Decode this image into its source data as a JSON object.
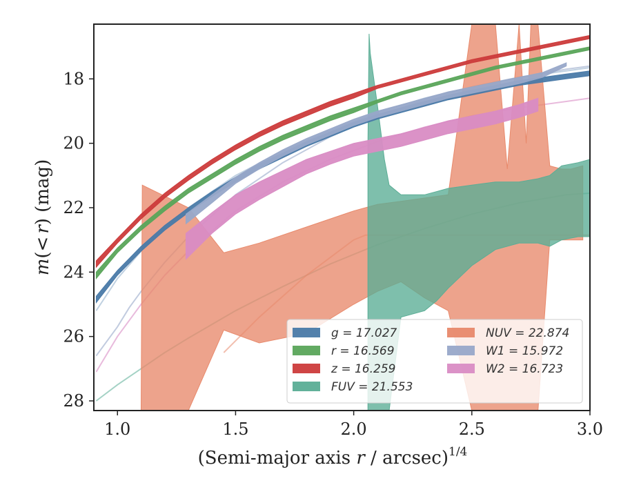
{
  "chart_data": {
    "type": "line",
    "xlabel": "(Semi-major axis r / arcsec)^1/4",
    "xlabel_parts": {
      "pre": "(Semi-major axis ",
      "var": "r",
      "post": " / arcsec)",
      "sup": "1/4"
    },
    "ylabel": "m(< r) (mag)",
    "ylabel_parts": {
      "m": "m",
      "open": "(",
      "lt": "<",
      "r": "r",
      "close": ")",
      "unit": " (mag)"
    },
    "xlim": [
      0.9,
      3.0
    ],
    "ylim": [
      28.3,
      16.3
    ],
    "y_inverted": true,
    "xticks": [
      1.0,
      1.5,
      2.0,
      2.5,
      3.0
    ],
    "xtick_labels": [
      "1.0",
      "1.5",
      "2.0",
      "2.5",
      "3.0"
    ],
    "yticks": [
      18,
      20,
      22,
      24,
      26,
      28
    ],
    "ytick_labels": [
      "18",
      "20",
      "22",
      "24",
      "26",
      "28"
    ],
    "grid": false,
    "legend_position": "lower-right",
    "series": [
      {
        "key": "g",
        "label": "g = 17.027",
        "color": "#4a7aa8",
        "kind": "band",
        "x": [
          0.91,
          1.0,
          1.1,
          1.2,
          1.3,
          1.4,
          1.5,
          1.6,
          1.7,
          1.8,
          1.9,
          2.0,
          2.1,
          2.2,
          2.3,
          2.4,
          2.5,
          2.6,
          2.7,
          2.8,
          2.9,
          3.0
        ],
        "y_upper": [
          24.75,
          23.95,
          23.2,
          22.55,
          22.0,
          21.5,
          21.05,
          20.65,
          20.3,
          19.95,
          19.65,
          19.35,
          19.1,
          18.9,
          18.7,
          18.5,
          18.35,
          18.2,
          18.05,
          17.95,
          17.85,
          17.75
        ],
        "y_lower": [
          24.95,
          24.1,
          23.35,
          22.7,
          22.15,
          21.65,
          21.2,
          20.8,
          20.45,
          20.1,
          19.8,
          19.5,
          19.25,
          19.05,
          18.85,
          18.65,
          18.5,
          18.35,
          18.2,
          18.1,
          18.0,
          17.9
        ]
      },
      {
        "key": "r",
        "label": "r = 16.569",
        "color": "#5aa55a",
        "kind": "band",
        "x": [
          0.91,
          1.0,
          1.1,
          1.2,
          1.3,
          1.4,
          1.5,
          1.6,
          1.7,
          1.8,
          1.9,
          2.0,
          2.1,
          2.2,
          2.3,
          2.4,
          2.5,
          2.6,
          2.7,
          2.8,
          2.9,
          3.0
        ],
        "y_upper": [
          24.0,
          23.25,
          22.55,
          21.95,
          21.4,
          20.95,
          20.5,
          20.1,
          19.75,
          19.45,
          19.15,
          18.9,
          18.65,
          18.4,
          18.2,
          18.0,
          17.8,
          17.6,
          17.45,
          17.3,
          17.15,
          17.0
        ],
        "y_lower": [
          24.2,
          23.4,
          22.7,
          22.1,
          21.55,
          21.1,
          20.65,
          20.25,
          19.9,
          19.6,
          19.3,
          19.05,
          18.75,
          18.5,
          18.3,
          18.1,
          17.9,
          17.7,
          17.55,
          17.4,
          17.25,
          17.1
        ]
      },
      {
        "key": "z",
        "label": "z = 16.259",
        "color": "#cc3b3b",
        "kind": "band",
        "x": [
          0.91,
          1.0,
          1.1,
          1.2,
          1.3,
          1.4,
          1.5,
          1.6,
          1.7,
          1.8,
          1.9,
          2.0,
          2.1,
          2.2,
          2.3,
          2.4,
          2.5,
          2.6,
          2.7,
          2.8,
          2.9,
          3.0
        ],
        "y_upper": [
          23.65,
          22.95,
          22.2,
          21.55,
          21.0,
          20.5,
          20.05,
          19.65,
          19.3,
          19.0,
          18.7,
          18.45,
          18.2,
          18.0,
          17.8,
          17.6,
          17.4,
          17.25,
          17.1,
          16.95,
          16.8,
          16.65
        ],
        "y_lower": [
          23.85,
          23.1,
          22.35,
          21.7,
          21.15,
          20.65,
          20.2,
          19.8,
          19.45,
          19.15,
          18.85,
          18.6,
          18.3,
          18.1,
          17.9,
          17.7,
          17.5,
          17.35,
          17.2,
          17.05,
          16.9,
          16.75
        ]
      },
      {
        "key": "FUV",
        "label": "FUV = 21.553",
        "color": "#5aad95",
        "kind": "band",
        "x": [
          2.06,
          2.065,
          2.07,
          2.1,
          2.13,
          2.15,
          2.2,
          2.3,
          2.35,
          2.4,
          2.5,
          2.6,
          2.7,
          2.78,
          2.83,
          2.88,
          2.95,
          3.0
        ],
        "y_upper": [
          20.0,
          16.6,
          17.2,
          18.8,
          20.5,
          21.3,
          21.6,
          21.6,
          21.5,
          21.4,
          21.3,
          21.2,
          21.2,
          21.1,
          21.0,
          20.7,
          20.6,
          20.5
        ],
        "y_lower": [
          28.3,
          28.3,
          28.3,
          28.3,
          28.3,
          28.3,
          25.4,
          25.2,
          24.9,
          24.5,
          23.8,
          23.3,
          23.1,
          23.1,
          23.2,
          23.0,
          22.9,
          22.9
        ]
      },
      {
        "key": "NUV",
        "label": "NUV = 22.874",
        "color": "#e8896b",
        "kind": "band",
        "x": [
          1.1,
          1.105,
          1.3,
          1.45,
          1.6,
          1.8,
          2.0,
          2.1,
          2.2,
          2.3,
          2.4,
          2.5,
          2.55,
          2.6,
          2.65,
          2.7,
          2.73,
          2.75,
          2.78,
          2.83,
          2.88,
          2.92,
          2.97
        ],
        "y_upper": [
          28.3,
          21.3,
          22.0,
          23.4,
          23.1,
          22.6,
          22.1,
          21.9,
          21.8,
          21.7,
          21.6,
          16.3,
          16.3,
          16.3,
          20.8,
          16.3,
          20.0,
          16.3,
          16.3,
          20.7,
          20.8,
          20.8,
          20.7
        ],
        "y_lower": [
          28.3,
          28.3,
          28.3,
          25.8,
          26.2,
          25.9,
          25.0,
          24.6,
          24.3,
          24.8,
          25.2,
          28.3,
          28.3,
          28.3,
          28.3,
          28.3,
          28.3,
          28.3,
          28.3,
          23.0,
          23.0,
          23.0,
          23.0
        ]
      },
      {
        "key": "W1",
        "label": "W1 = 15.972",
        "color": "#98a8c9",
        "kind": "band",
        "x": [
          1.29,
          1.4,
          1.5,
          1.6,
          1.7,
          1.8,
          1.9,
          2.0,
          2.1,
          2.2,
          2.3,
          2.4,
          2.5,
          2.6,
          2.7,
          2.8,
          2.9
        ],
        "y_upper": [
          22.2,
          21.6,
          21.05,
          20.6,
          20.2,
          19.85,
          19.55,
          19.25,
          19.0,
          18.8,
          18.6,
          18.4,
          18.25,
          18.1,
          17.95,
          17.8,
          17.5
        ],
        "y_lower": [
          22.5,
          21.85,
          21.25,
          20.8,
          20.4,
          20.05,
          19.75,
          19.45,
          19.2,
          19.0,
          18.8,
          18.6,
          18.45,
          18.3,
          18.15,
          17.95,
          17.6
        ]
      },
      {
        "key": "W2",
        "label": "W2 = 16.723",
        "color": "#d98cc4",
        "kind": "band",
        "x": [
          1.29,
          1.4,
          1.5,
          1.6,
          1.7,
          1.8,
          1.9,
          2.0,
          2.1,
          2.2,
          2.3,
          2.4,
          2.5,
          2.6,
          2.7,
          2.78
        ],
        "y_upper": [
          22.8,
          22.15,
          21.6,
          21.2,
          20.85,
          20.5,
          20.25,
          20.0,
          19.85,
          19.7,
          19.5,
          19.3,
          19.15,
          19.0,
          18.8,
          18.6
        ],
        "y_lower": [
          23.6,
          22.8,
          22.2,
          21.75,
          21.35,
          20.95,
          20.65,
          20.4,
          20.25,
          20.1,
          19.9,
          19.7,
          19.55,
          19.4,
          19.2,
          19.0
        ]
      }
    ],
    "model_curves": [
      {
        "key": "g-model",
        "color": "#4a7aa8",
        "opacity": 0.35,
        "x": [
          0.91,
          1.0,
          1.1,
          1.2,
          1.3,
          1.5,
          1.7,
          1.9,
          2.1,
          2.3,
          2.5,
          2.7,
          2.9,
          3.0
        ],
        "y": [
          25.2,
          24.2,
          23.35,
          22.6,
          22.0,
          21.0,
          20.25,
          19.6,
          19.05,
          18.6,
          18.25,
          17.95,
          17.75,
          17.65
        ]
      },
      {
        "key": "W1-model",
        "color": "#98a8c9",
        "opacity": 0.6,
        "x": [
          0.91,
          1.0,
          1.05,
          1.1,
          1.2,
          1.3,
          1.5,
          1.7,
          1.9,
          2.1,
          2.3,
          2.5,
          2.7,
          2.9,
          3.0
        ],
        "y": [
          26.6,
          25.7,
          25.1,
          24.6,
          23.7,
          22.9,
          21.6,
          20.6,
          19.8,
          19.15,
          18.65,
          18.25,
          17.95,
          17.7,
          17.6
        ]
      },
      {
        "key": "W2-model",
        "color": "#d98cc4",
        "opacity": 0.6,
        "x": [
          0.91,
          1.0,
          1.05,
          1.1,
          1.2,
          1.3,
          1.5,
          1.7,
          1.9,
          2.1,
          2.3,
          2.5,
          2.7,
          2.9,
          3.0
        ],
        "y": [
          27.1,
          26.0,
          25.5,
          25.0,
          24.1,
          23.35,
          22.1,
          21.2,
          20.5,
          19.95,
          19.5,
          19.15,
          18.9,
          18.7,
          18.6
        ]
      },
      {
        "key": "FUV-model",
        "color": "#5aad95",
        "opacity": 0.55,
        "x": [
          0.91,
          1.0,
          1.1,
          1.2,
          1.3,
          1.5,
          1.7,
          1.9,
          2.1,
          2.3,
          2.5,
          2.7,
          2.9,
          3.0
        ],
        "y": [
          28.0,
          27.5,
          27.0,
          26.5,
          26.05,
          25.2,
          24.45,
          23.75,
          23.15,
          22.65,
          22.2,
          21.85,
          21.6,
          21.55
        ]
      },
      {
        "key": "NUV-model",
        "color": "#e8896b",
        "opacity": 0.55,
        "x": [
          1.45,
          1.6,
          1.8,
          2.0,
          2.05,
          2.1,
          2.3,
          2.5,
          2.7,
          2.9,
          3.0
        ],
        "y": [
          26.5,
          25.4,
          24.1,
          23.0,
          22.85,
          22.85,
          22.85,
          22.85,
          22.85,
          22.85,
          22.85
        ]
      }
    ]
  }
}
